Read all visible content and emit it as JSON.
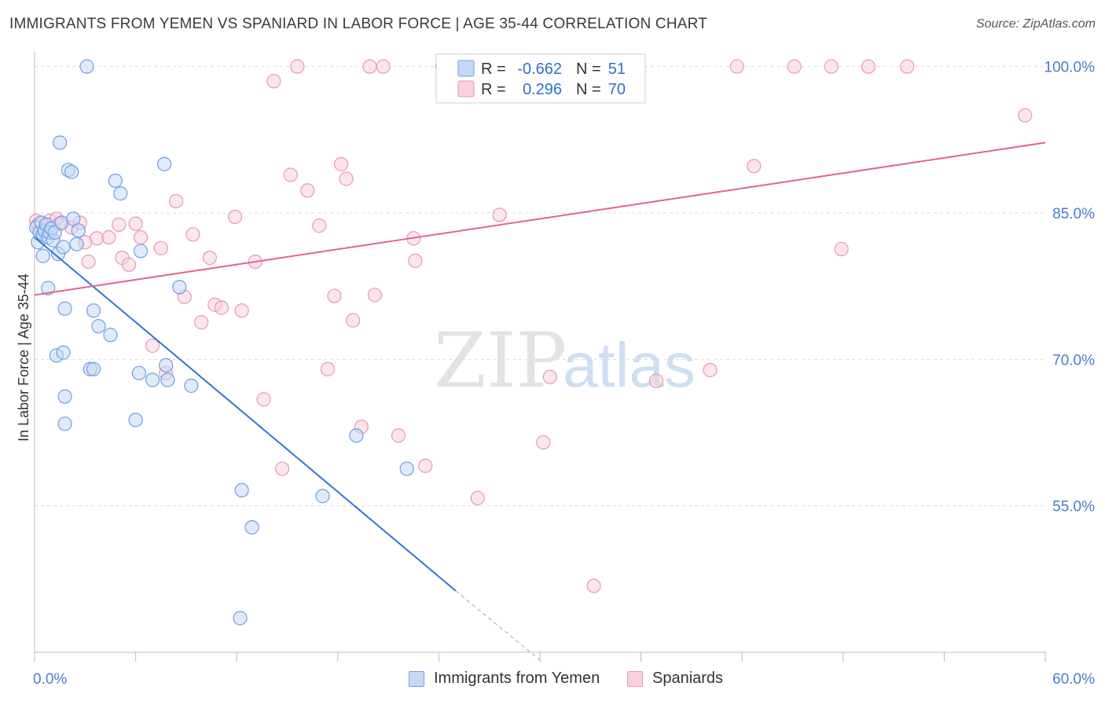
{
  "title": "IMMIGRANTS FROM YEMEN VS SPANIARD IN LABOR FORCE | AGE 35-44 CORRELATION CHART",
  "source": "Source: ZipAtlas.com",
  "watermark": {
    "zip": "ZIP",
    "atlas": "atlas"
  },
  "colors": {
    "blue_fill": "#c5d9f7",
    "blue_stroke": "#6f9fdf",
    "blue_line": "#2f75d6",
    "pink_fill": "#f9d0de",
    "pink_stroke": "#e996b4",
    "pink_line": "#e0658f",
    "tick_label": "#4a7cc9",
    "grid": "#dcdcdc"
  },
  "legend_box": {
    "rows": [
      {
        "r_label": "R =",
        "r_value": "-0.662",
        "n_label": "N =",
        "n_value": "51"
      },
      {
        "r_label": "R =",
        "r_value": "0.296",
        "n_label": "N =",
        "n_value": "70"
      }
    ]
  },
  "chart_data": {
    "type": "scatter",
    "title": "IMMIGRANTS FROM YEMEN VS SPANIARD IN LABOR FORCE | AGE 35-44 CORRELATION CHART",
    "xlabel": "",
    "ylabel": "In Labor Force | Age 35-44",
    "xlim": [
      0,
      60
    ],
    "ylim": [
      40,
      101.5
    ],
    "x_tick_labels": [
      {
        "value": 0,
        "label": "0.0%"
      },
      {
        "value": 60,
        "label": "60.0%"
      }
    ],
    "y_tick_labels": [
      {
        "value": 55,
        "label": "55.0%"
      },
      {
        "value": 70,
        "label": "70.0%"
      },
      {
        "value": 85,
        "label": "85.0%"
      },
      {
        "value": 100,
        "label": "100.0%"
      }
    ],
    "grid": true,
    "legend_position": "top-center",
    "series": [
      {
        "name": "Immigrants from Yemen",
        "R": -0.662,
        "N": 51,
        "trend": {
          "x0": 0.0,
          "y0": 82.5,
          "x1": 25.0,
          "y1": 46.3,
          "dash_x1": 30.0,
          "dash_y1": 39.2
        },
        "points": [
          [
            0.1,
            83.5
          ],
          [
            0.2,
            82.0
          ],
          [
            0.3,
            83.0
          ],
          [
            0.4,
            84.0
          ],
          [
            0.5,
            82.8
          ],
          [
            0.6,
            83.2
          ],
          [
            0.7,
            83.8
          ],
          [
            0.8,
            82.5
          ],
          [
            0.9,
            83.0
          ],
          [
            1.0,
            83.4
          ],
          [
            1.1,
            82.2
          ],
          [
            1.2,
            83.0
          ],
          [
            0.5,
            80.6
          ],
          [
            0.8,
            77.3
          ],
          [
            1.4,
            80.8
          ],
          [
            1.5,
            92.2
          ],
          [
            1.6,
            84.0
          ],
          [
            1.7,
            81.5
          ],
          [
            1.8,
            75.2
          ],
          [
            2.0,
            89.4
          ],
          [
            2.2,
            89.2
          ],
          [
            2.3,
            84.4
          ],
          [
            2.5,
            81.8
          ],
          [
            2.6,
            83.2
          ],
          [
            3.1,
            100.0
          ],
          [
            3.5,
            75.0
          ],
          [
            3.8,
            73.4
          ],
          [
            4.5,
            72.5
          ],
          [
            4.8,
            88.3
          ],
          [
            5.1,
            87.0
          ],
          [
            6.0,
            63.8
          ],
          [
            6.2,
            68.6
          ],
          [
            6.3,
            81.1
          ],
          [
            7.0,
            67.9
          ],
          [
            7.7,
            90.0
          ],
          [
            7.8,
            69.4
          ],
          [
            7.9,
            67.9
          ],
          [
            8.6,
            77.4
          ],
          [
            9.3,
            67.3
          ],
          [
            12.3,
            56.6
          ],
          [
            12.9,
            52.8
          ],
          [
            12.2,
            43.5
          ],
          [
            17.1,
            56.0
          ],
          [
            19.1,
            62.2
          ],
          [
            22.1,
            58.8
          ],
          [
            1.3,
            70.4
          ],
          [
            1.7,
            70.7
          ],
          [
            1.8,
            66.2
          ],
          [
            1.8,
            63.4
          ],
          [
            3.3,
            69.0
          ],
          [
            3.5,
            69.0
          ]
        ]
      },
      {
        "name": "Spaniards",
        "R": 0.296,
        "N": 70,
        "trend": {
          "x0": 0.0,
          "y0": 76.6,
          "x1": 60.0,
          "y1": 92.2
        },
        "points": [
          [
            0.1,
            84.2
          ],
          [
            0.2,
            83.8
          ],
          [
            0.4,
            84.0
          ],
          [
            0.6,
            83.5
          ],
          [
            0.9,
            84.2
          ],
          [
            1.1,
            83.6
          ],
          [
            1.3,
            84.4
          ],
          [
            1.5,
            83.9
          ],
          [
            2.2,
            83.5
          ],
          [
            2.7,
            84.0
          ],
          [
            3.0,
            82.0
          ],
          [
            3.2,
            80.0
          ],
          [
            3.7,
            82.4
          ],
          [
            4.4,
            82.5
          ],
          [
            5.0,
            83.8
          ],
          [
            5.2,
            80.4
          ],
          [
            5.6,
            79.7
          ],
          [
            6.0,
            83.9
          ],
          [
            6.3,
            82.5
          ],
          [
            7.0,
            71.4
          ],
          [
            7.5,
            81.4
          ],
          [
            7.8,
            68.6
          ],
          [
            8.4,
            86.2
          ],
          [
            8.9,
            76.4
          ],
          [
            9.4,
            82.8
          ],
          [
            9.9,
            73.8
          ],
          [
            10.4,
            80.4
          ],
          [
            10.7,
            75.6
          ],
          [
            11.1,
            75.3
          ],
          [
            11.9,
            84.6
          ],
          [
            12.3,
            75.0
          ],
          [
            13.1,
            80.0
          ],
          [
            13.6,
            65.9
          ],
          [
            14.2,
            98.5
          ],
          [
            14.7,
            58.8
          ],
          [
            15.2,
            88.9
          ],
          [
            15.6,
            100.0
          ],
          [
            16.2,
            87.3
          ],
          [
            16.9,
            83.7
          ],
          [
            17.4,
            69.0
          ],
          [
            17.8,
            76.5
          ],
          [
            18.2,
            90.0
          ],
          [
            18.5,
            88.5
          ],
          [
            18.9,
            74.0
          ],
          [
            19.4,
            63.1
          ],
          [
            19.9,
            100.0
          ],
          [
            20.2,
            76.6
          ],
          [
            20.7,
            100.0
          ],
          [
            21.6,
            62.2
          ],
          [
            22.5,
            82.4
          ],
          [
            22.6,
            80.1
          ],
          [
            23.2,
            59.1
          ],
          [
            24.2,
            100.0
          ],
          [
            24.9,
            100.0
          ],
          [
            25.5,
            98.0
          ],
          [
            26.3,
            55.8
          ],
          [
            27.6,
            84.8
          ],
          [
            30.2,
            61.5
          ],
          [
            30.6,
            68.2
          ],
          [
            33.2,
            46.8
          ],
          [
            36.9,
            67.8
          ],
          [
            40.1,
            68.9
          ],
          [
            41.7,
            100.0
          ],
          [
            42.7,
            89.8
          ],
          [
            45.1,
            100.0
          ],
          [
            47.3,
            100.0
          ],
          [
            47.9,
            81.3
          ],
          [
            49.5,
            100.0
          ],
          [
            51.8,
            100.0
          ],
          [
            58.8,
            95.0
          ]
        ]
      }
    ]
  }
}
